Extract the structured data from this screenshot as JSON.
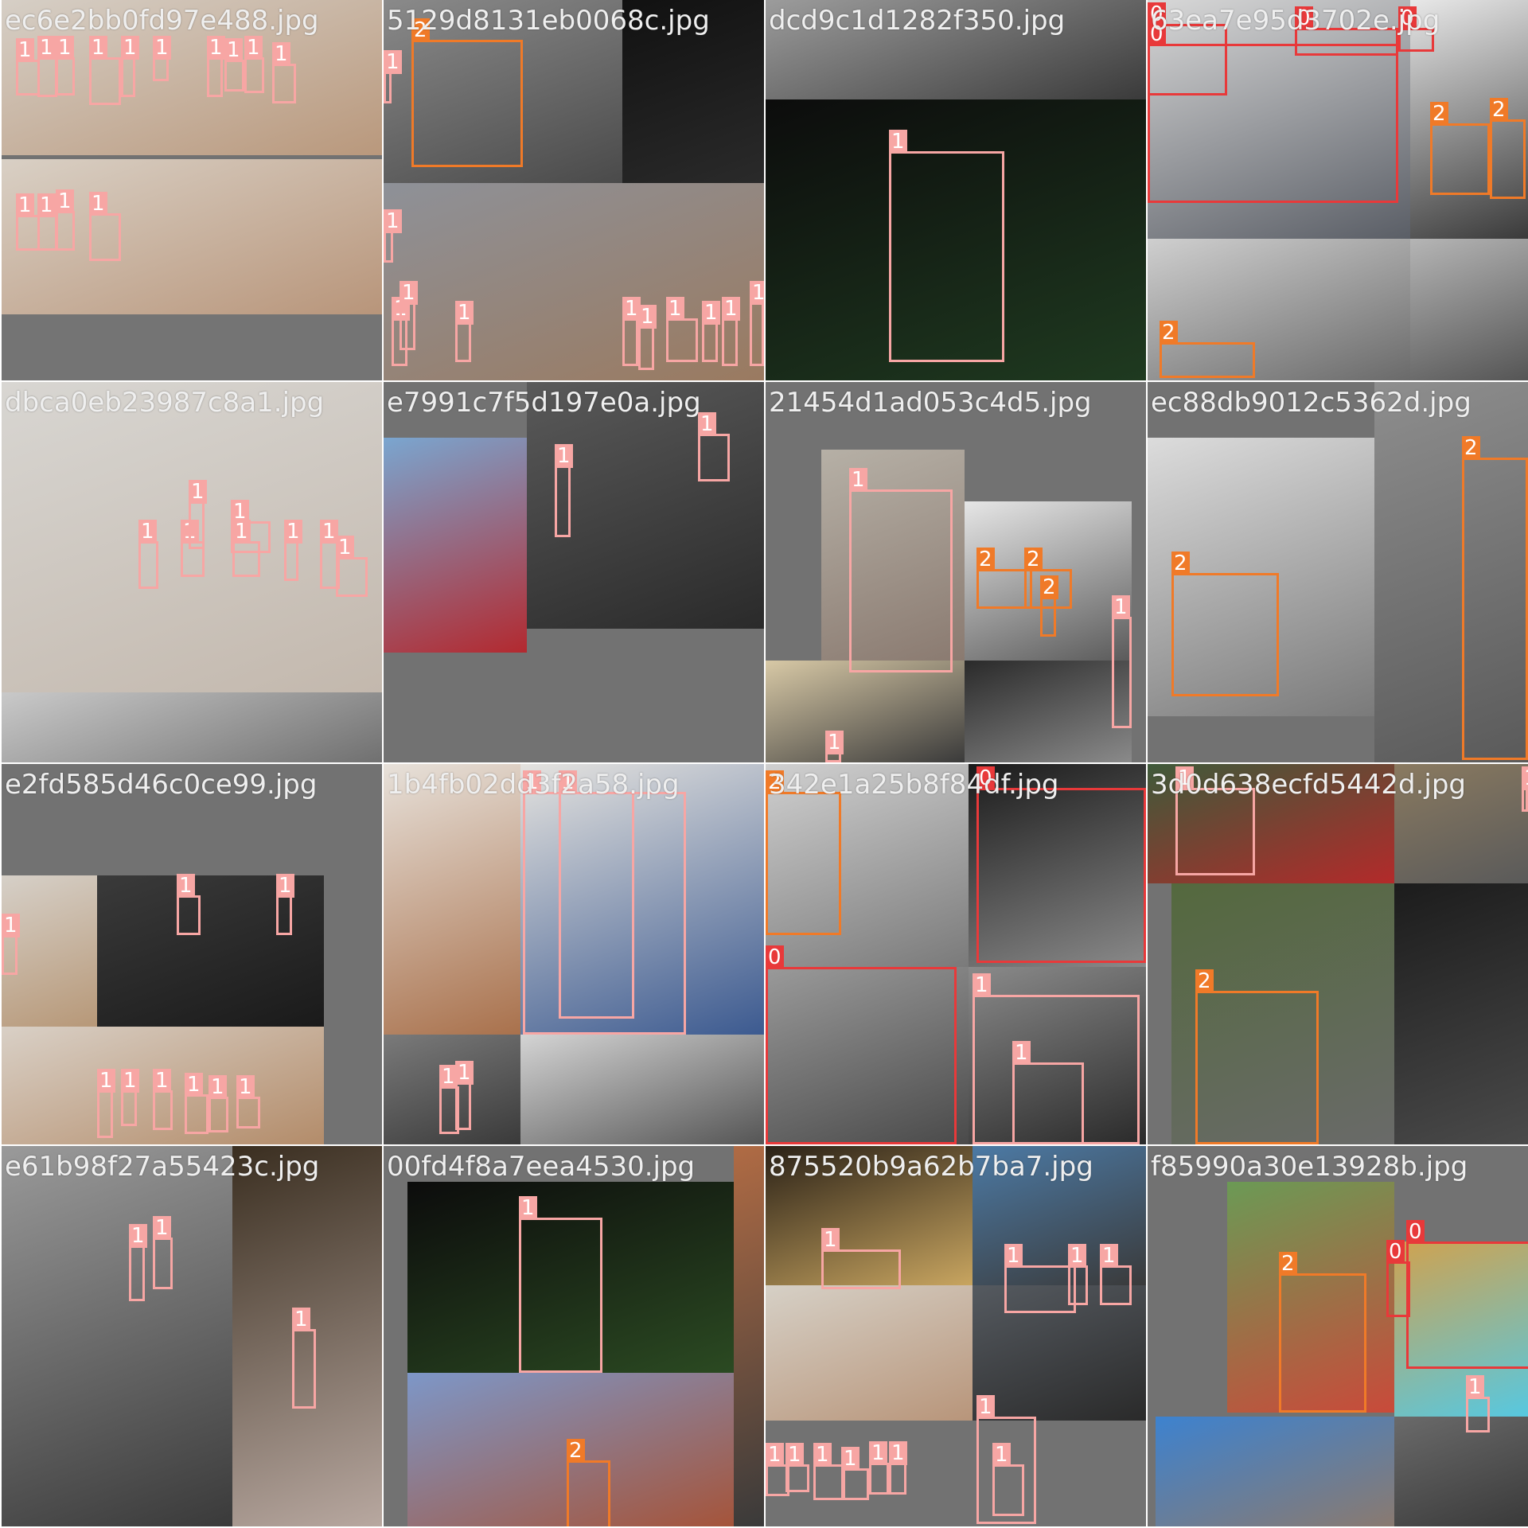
{
  "tiles": [
    {
      "label": "ec6e2bb0fd97e488.jpg",
      "boxes": [
        {
          "cls": "1"
        },
        {
          "cls": "1"
        },
        {
          "cls": "1"
        },
        {
          "cls": "1"
        },
        {
          "cls": "1"
        },
        {
          "cls": "1"
        },
        {
          "cls": "1"
        },
        {
          "cls": "1"
        },
        {
          "cls": "1"
        },
        {
          "cls": "1"
        },
        {
          "cls": "1"
        },
        {
          "cls": "1"
        },
        {
          "cls": "1"
        },
        {
          "cls": "1"
        }
      ]
    },
    {
      "label": "5129d8131eb0068c.jpg",
      "boxes": [
        {
          "cls": "2"
        },
        {
          "cls": "1"
        },
        {
          "cls": "1"
        },
        {
          "cls": "1"
        },
        {
          "cls": "1"
        },
        {
          "cls": "1"
        },
        {
          "cls": "1"
        },
        {
          "cls": "1"
        },
        {
          "cls": "1"
        },
        {
          "cls": "1"
        },
        {
          "cls": "1"
        },
        {
          "cls": "1"
        }
      ]
    },
    {
      "label": "dcd9c1d1282f350.jpg",
      "boxes": [
        {
          "cls": "1"
        }
      ]
    },
    {
      "label": "63ea7e95d3702e.jpg",
      "boxes": [
        {
          "cls": "0"
        },
        {
          "cls": "0"
        },
        {
          "cls": "0"
        },
        {
          "cls": "0"
        },
        {
          "cls": "2"
        },
        {
          "cls": "2"
        },
        {
          "cls": "2"
        }
      ]
    },
    {
      "label": "dbca0eb23987c8a1.jpg",
      "boxes": [
        {
          "cls": "1"
        },
        {
          "cls": "1"
        },
        {
          "cls": "1"
        },
        {
          "cls": "1"
        },
        {
          "cls": "1"
        },
        {
          "cls": "1"
        },
        {
          "cls": "1"
        },
        {
          "cls": "1"
        }
      ]
    },
    {
      "label": "e7991c7f5d197e0a.jpg",
      "boxes": [
        {
          "cls": "1"
        },
        {
          "cls": "1"
        }
      ]
    },
    {
      "label": "21454d1ad053c4d5.jpg",
      "boxes": [
        {
          "cls": "1"
        },
        {
          "cls": "2"
        },
        {
          "cls": "2"
        },
        {
          "cls": "2"
        },
        {
          "cls": "1"
        },
        {
          "cls": "1"
        }
      ]
    },
    {
      "label": "ec88db9012c5362d.jpg",
      "boxes": [
        {
          "cls": "2"
        },
        {
          "cls": "2"
        }
      ]
    },
    {
      "label": "e2fd585d46c0ce99.jpg",
      "boxes": [
        {
          "cls": "1"
        },
        {
          "cls": "1"
        },
        {
          "cls": "1"
        },
        {
          "cls": "1"
        },
        {
          "cls": "1"
        },
        {
          "cls": "1"
        },
        {
          "cls": "1"
        },
        {
          "cls": "1"
        },
        {
          "cls": "1"
        }
      ]
    },
    {
      "label": "1b4fb02dd3f2a58.jpg",
      "boxes": [
        {
          "cls": "1"
        },
        {
          "cls": "1"
        },
        {
          "cls": "1"
        },
        {
          "cls": "1"
        }
      ]
    },
    {
      "label": "342e1a25b8f84df.jpg",
      "boxes": [
        {
          "cls": "2"
        },
        {
          "cls": "0"
        },
        {
          "cls": "0"
        },
        {
          "cls": "1"
        },
        {
          "cls": "1"
        }
      ]
    },
    {
      "label": "3d0d638ecfd5442d.jpg",
      "boxes": [
        {
          "cls": "1"
        },
        {
          "cls": "2"
        },
        {
          "cls": "1"
        }
      ]
    },
    {
      "label": "e61b98f27a55423c.jpg",
      "boxes": [
        {
          "cls": "1"
        },
        {
          "cls": "1"
        },
        {
          "cls": "1"
        }
      ]
    },
    {
      "label": "00fd4f8a7eea4530.jpg",
      "boxes": [
        {
          "cls": "1"
        },
        {
          "cls": "2"
        }
      ]
    },
    {
      "label": "875520b9a62b7ba7.jpg",
      "boxes": [
        {
          "cls": "1"
        },
        {
          "cls": "1"
        },
        {
          "cls": "1"
        },
        {
          "cls": "1"
        },
        {
          "cls": "1"
        },
        {
          "cls": "1"
        },
        {
          "cls": "1"
        },
        {
          "cls": "1"
        },
        {
          "cls": "1"
        },
        {
          "cls": "1"
        },
        {
          "cls": "1"
        },
        {
          "cls": "1"
        },
        {
          "cls": "1"
        }
      ]
    },
    {
      "label": "f85990a30e13928b.jpg",
      "boxes": [
        {
          "cls": "2"
        },
        {
          "cls": "0"
        },
        {
          "cls": "0"
        },
        {
          "cls": "1"
        }
      ]
    }
  ]
}
